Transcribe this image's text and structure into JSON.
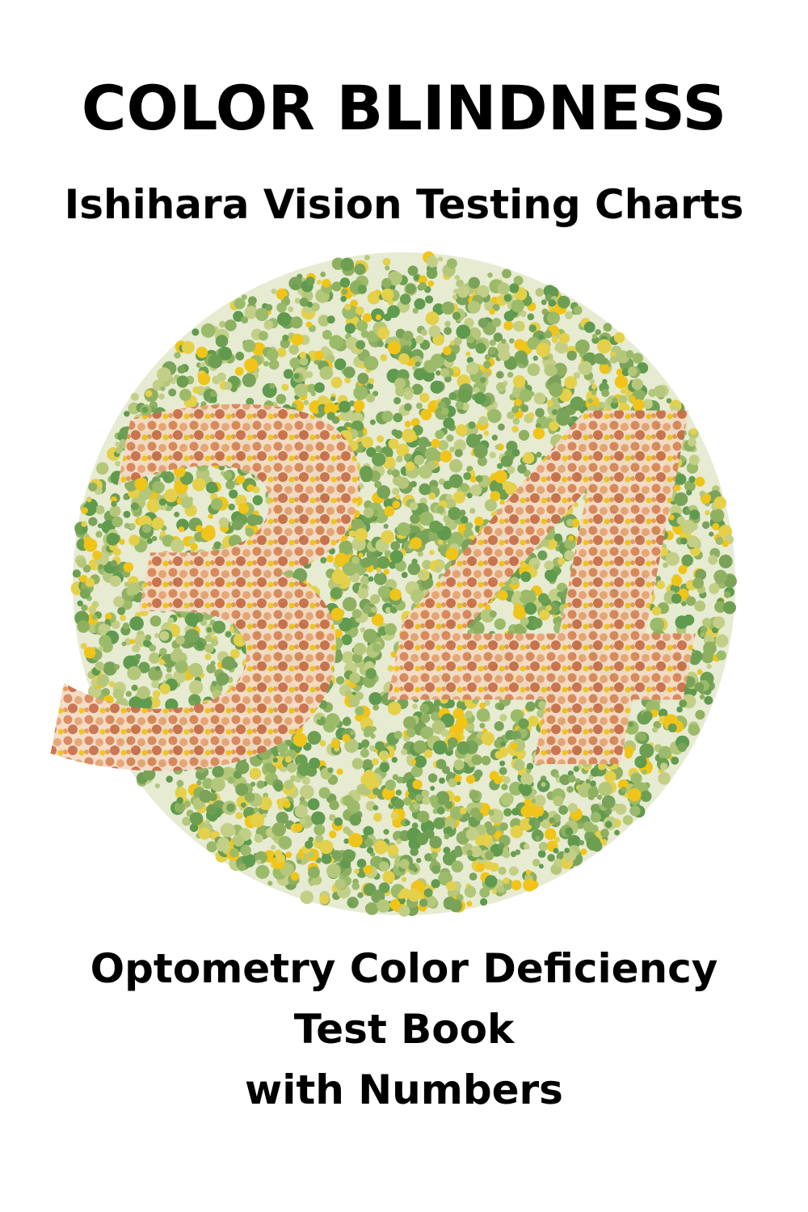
{
  "header": {
    "title": "COLOR BLINDNESS",
    "subtitle": "Ishihara Vision Testing Charts"
  },
  "plate": {
    "number": "34"
  },
  "footer": {
    "lines": [
      "Optometry Color Deficiency",
      "Test Book",
      "with Numbers"
    ]
  }
}
